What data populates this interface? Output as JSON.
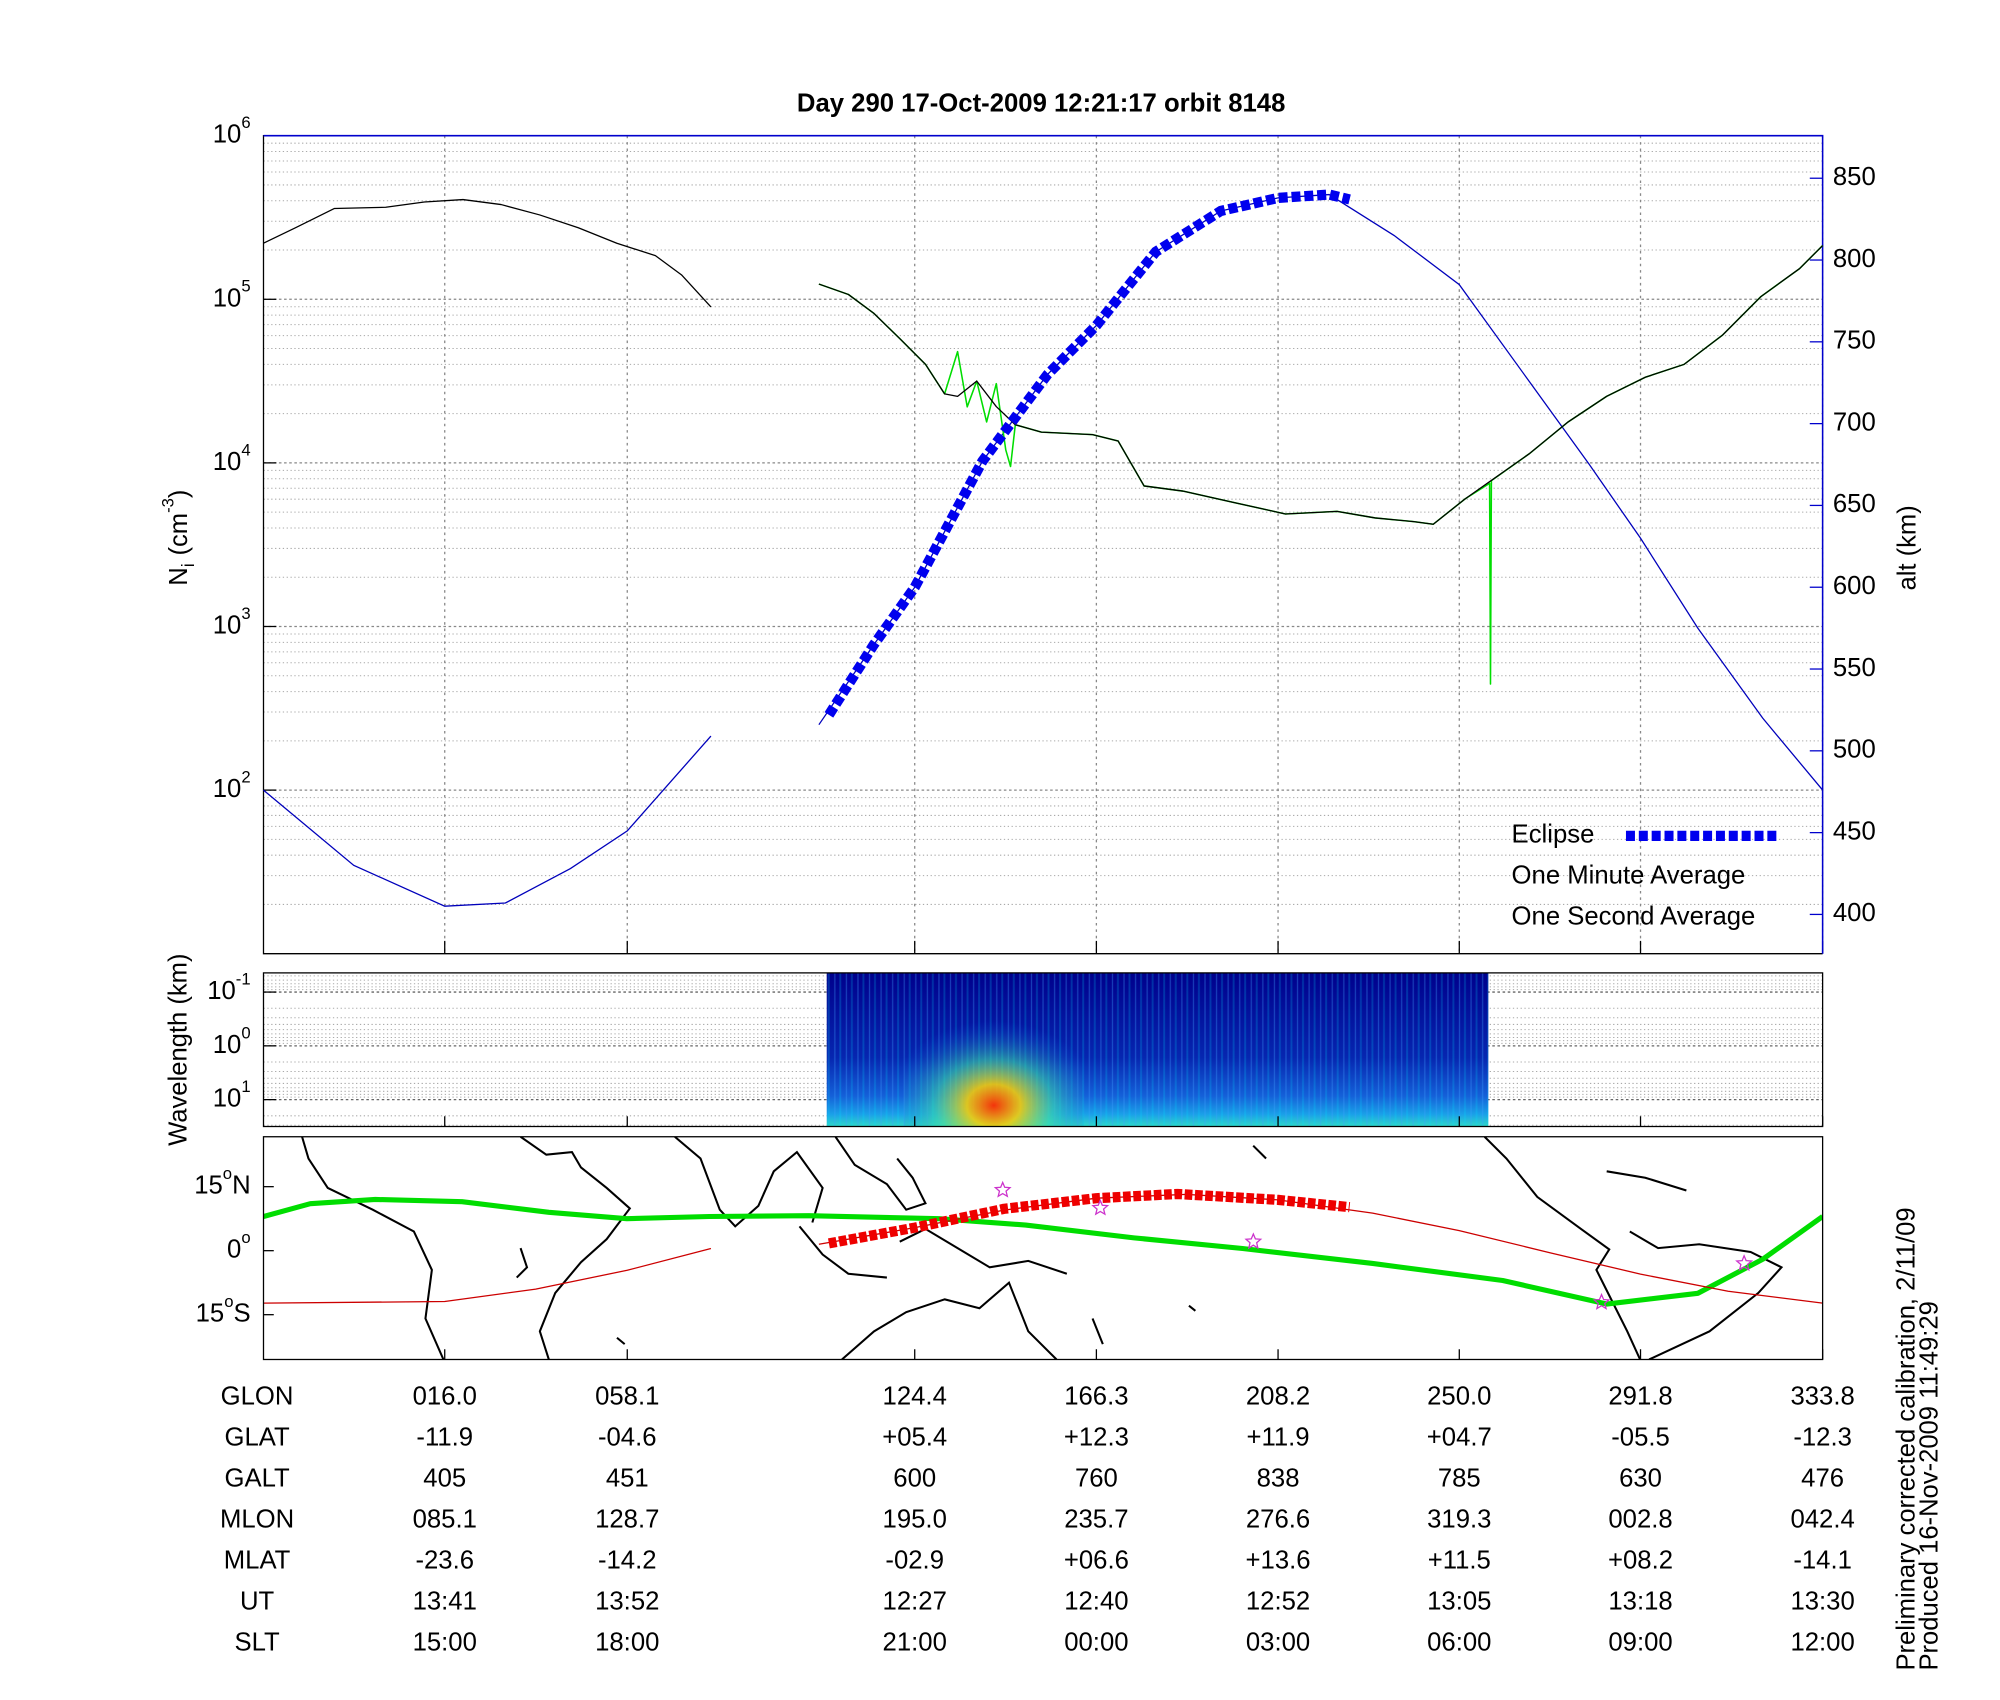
{
  "title": "Day 290  17-Oct-2009 12:21:17   orbit 8148",
  "chart_data": [
    {
      "type": "line",
      "y_label": {
        "text": "N",
        "sub": "i",
        "unit": "(cm",
        "sup": "-3",
        "close": ")"
      },
      "y2_label": "alt (km)",
      "xlim": [
        -25.8,
        333.8
      ],
      "ylim": [
        10,
        1000000
      ],
      "log_y": true,
      "yticks": [
        {
          "value": 100,
          "label": "10",
          "sup": "2"
        },
        {
          "value": 1000,
          "label": "10",
          "sup": "3"
        },
        {
          "value": 10000,
          "label": "10",
          "sup": "4"
        },
        {
          "value": 100000,
          "label": "10",
          "sup": "5"
        },
        {
          "value": 1000000,
          "label": "10",
          "sup": "6"
        }
      ],
      "y2lim": [
        376,
        876
      ],
      "y2ticks": [
        400,
        450,
        500,
        550,
        600,
        650,
        700,
        750,
        800,
        850
      ],
      "y2_color": "#0000cc",
      "grid": true,
      "legend": "lower right",
      "altitude": {
        "color": "#0000bb",
        "axis": "y2",
        "x": [
          -25.8,
          -5,
          16,
          30,
          45,
          58.1,
          77.4,
          90,
          102.3,
          115,
          124.4,
          140,
          155,
          166.3,
          180,
          195,
          208.2,
          220,
          235,
          250,
          265,
          280,
          291.8,
          305,
          320,
          333.8
        ],
        "values": [
          476,
          430,
          405,
          407,
          428,
          451,
          509,
          null,
          516,
          565,
          600,
          677,
          730,
          760,
          805,
          830,
          838,
          840,
          815,
          785,
          730,
          675,
          630,
          575,
          520,
          476
        ]
      },
      "series": [
        {
          "name": "Eclipse",
          "color": "#0000ee",
          "axis": "y2",
          "style": "thick-dashed",
          "x": [
            104.6,
            115,
            124.4,
            140,
            155,
            166.3,
            180,
            195,
            208.2,
            220,
            224.7
          ],
          "values": [
            522,
            565,
            600,
            677,
            730,
            760,
            805,
            830,
            838,
            840,
            837
          ]
        },
        {
          "name": "One Minute Average",
          "color": "#000000",
          "style": "thin",
          "x": [
            -25.8,
            -18.4,
            -9.5,
            2.4,
            11.3,
            20.2,
            29.0,
            37.9,
            46.8,
            55.7,
            64.6,
            70.6,
            77.4,
            90,
            102.3,
            109.1,
            115.0,
            121.0,
            126.9,
            131.3,
            134.3,
            138.7,
            143.2,
            147.6,
            153.6,
            165.4,
            171.3,
            177.3,
            186.2,
            198.0,
            209.9,
            221.8,
            230.6,
            239.5,
            244.0,
            251.4,
            257.3,
            266.2,
            275.1,
            284.0,
            292.9,
            301.8,
            310.7,
            319.6,
            328.5,
            333.8
          ],
          "values": [
            220000,
            274000,
            359000,
            365000,
            393000,
            407000,
            379000,
            328000,
            274000,
            220000,
            185000,
            141000,
            89800,
            null,
            124000,
            107000,
            82000,
            57300,
            40000,
            26400,
            25500,
            31600,
            22100,
            17100,
            15400,
            14900,
            13600,
            7230,
            6730,
            5730,
            4870,
            5050,
            4610,
            4370,
            4220,
            6040,
            7780,
            11400,
            17800,
            25500,
            33400,
            40000,
            60400,
            104000,
            154000,
            213000
          ]
        },
        {
          "name": "One Second Average",
          "color": "#00dd00",
          "style": "medium",
          "x": [
            102.3,
            109.1,
            115.0,
            121.0,
            126.9,
            131.3,
            134.3,
            136.5,
            138.7,
            141.0,
            143.2,
            145.4,
            146.5,
            147.6,
            153.6,
            165.4,
            171.3,
            177.3,
            186.2,
            198.0,
            209.9,
            221.8,
            230.6,
            239.5,
            244.0,
            251.4,
            257.0,
            257.2,
            257.4,
            266.2,
            275.1,
            284.0,
            292.9,
            301.8,
            310.7,
            319.6,
            328.5,
            333.8
          ],
          "values": [
            124000,
            107000,
            82000,
            57300,
            40000,
            26400,
            47900,
            22000,
            31600,
            17800,
            30500,
            12000,
            9500,
            17100,
            15400,
            14900,
            13600,
            7230,
            6730,
            5730,
            4870,
            5050,
            4610,
            4370,
            4220,
            6040,
            7500,
            445,
            7780,
            11400,
            17800,
            25500,
            33400,
            40000,
            60400,
            104000,
            154000,
            213000
          ]
        }
      ]
    },
    {
      "type": "spectrogram",
      "y_label": "Wavelength (km)",
      "xlim": [
        -25.8,
        333.8
      ],
      "ylim": [
        0.044,
        31.6
      ],
      "log_y": true,
      "y_reversed": true,
      "yticks": [
        {
          "value": 0.1,
          "label": "10",
          "sup": "-1"
        },
        {
          "value": 1,
          "label": "10",
          "sup": "0"
        },
        {
          "value": 10,
          "label": "10",
          "sup": "1"
        }
      ],
      "x_extent": [
        104.1,
        256.7
      ]
    },
    {
      "type": "map",
      "xlim": [
        -25.8,
        333.8
      ],
      "ylim": [
        -25.5,
        26.7
      ],
      "yticks": [
        {
          "value": 15,
          "label": "15",
          "sup": "o",
          "suffix": "N"
        },
        {
          "value": 0,
          "label": "0",
          "sup": "o"
        },
        {
          "value": -15,
          "label": "15",
          "sup": "o",
          "suffix": "S"
        }
      ],
      "xticks": [
        {
          "value": 16.0,
          "label": "016.0"
        },
        {
          "value": 58.1,
          "label": "058.1"
        },
        {
          "value": 124.4,
          "label": "124.4"
        },
        {
          "value": 166.3,
          "label": "166.3"
        },
        {
          "value": 208.2,
          "label": "208.2"
        },
        {
          "value": 250.0,
          "label": "250.0"
        },
        {
          "value": 291.8,
          "label": "291.8"
        },
        {
          "value": 333.8,
          "label": "333.8"
        }
      ],
      "tracks": [
        {
          "color": "#00dd00",
          "width": "thick",
          "x": [
            -25.8,
            -15,
            0,
            20,
            40,
            58,
            77,
            100,
            130,
            150,
            175,
            200,
            230,
            260,
            284,
            305,
            320,
            333.8
          ],
          "values": [
            8,
            11,
            12,
            11.5,
            9,
            7.5,
            8,
            8.2,
            7.5,
            6,
            3,
            0.5,
            -3,
            -7,
            -12.5,
            -10,
            -2,
            8
          ]
        },
        {
          "color": "#cc0000",
          "width": "thin",
          "x": [
            -25.8,
            16,
            37,
            58.1,
            77.4,
            90,
            102.3,
            124.4,
            145,
            166.3,
            187,
            208.2,
            230,
            250,
            271,
            291.8,
            312,
            333.8
          ],
          "values": [
            -12.3,
            -11.9,
            -9,
            -4.6,
            0.5,
            null,
            1.5,
            5.4,
            9.5,
            12.3,
            13.2,
            11.9,
            8.8,
            4.7,
            -0.5,
            -5.5,
            -9.5,
            -12.3
          ]
        },
        {
          "color": "#ee0000",
          "width": "thick-dashed",
          "x": [
            104.6,
            124.4,
            145,
            166.3,
            185,
            208.2,
            224.7
          ],
          "values": [
            1.7,
            5.4,
            9.8,
            12.3,
            13.3,
            11.9,
            10.2
          ]
        }
      ],
      "markers": {
        "color": "#cc33cc",
        "symbol": "star",
        "x": [
          144.7,
          167.2,
          202.5,
          282.8,
          315.7
        ],
        "values": [
          14.2,
          10,
          2.1,
          -12.1,
          -3
        ]
      }
    }
  ],
  "table": {
    "row_names": [
      "GLON",
      "GLAT",
      "GALT",
      "MLON",
      "MLAT",
      "UT",
      "SLT"
    ],
    "rows": [
      [
        "-11.9",
        "-04.6",
        "+05.4",
        "+12.3",
        "+11.9",
        "+04.7",
        "-05.5",
        "-12.3"
      ],
      [
        "405",
        "451",
        "600",
        "760",
        "838",
        "785",
        "630",
        "476"
      ],
      [
        "085.1",
        "128.7",
        "195.0",
        "235.7",
        "276.6",
        "319.3",
        "002.8",
        "042.4"
      ],
      [
        "-23.6",
        "-14.2",
        "-02.9",
        "+06.6",
        "+13.6",
        "+11.5",
        "+08.2",
        "-14.1"
      ],
      [
        "13:41",
        "13:52",
        "12:27",
        "12:40",
        "12:52",
        "13:05",
        "13:18",
        "13:30"
      ],
      [
        "15:00",
        "18:00",
        "21:00",
        "00:00",
        "03:00",
        "06:00",
        "09:00",
        "12:00"
      ]
    ]
  },
  "footnotes": [
    "Preliminary corrected calibration, 2/11/09",
    "Produced 16-Nov-2009 11:49:29"
  ]
}
